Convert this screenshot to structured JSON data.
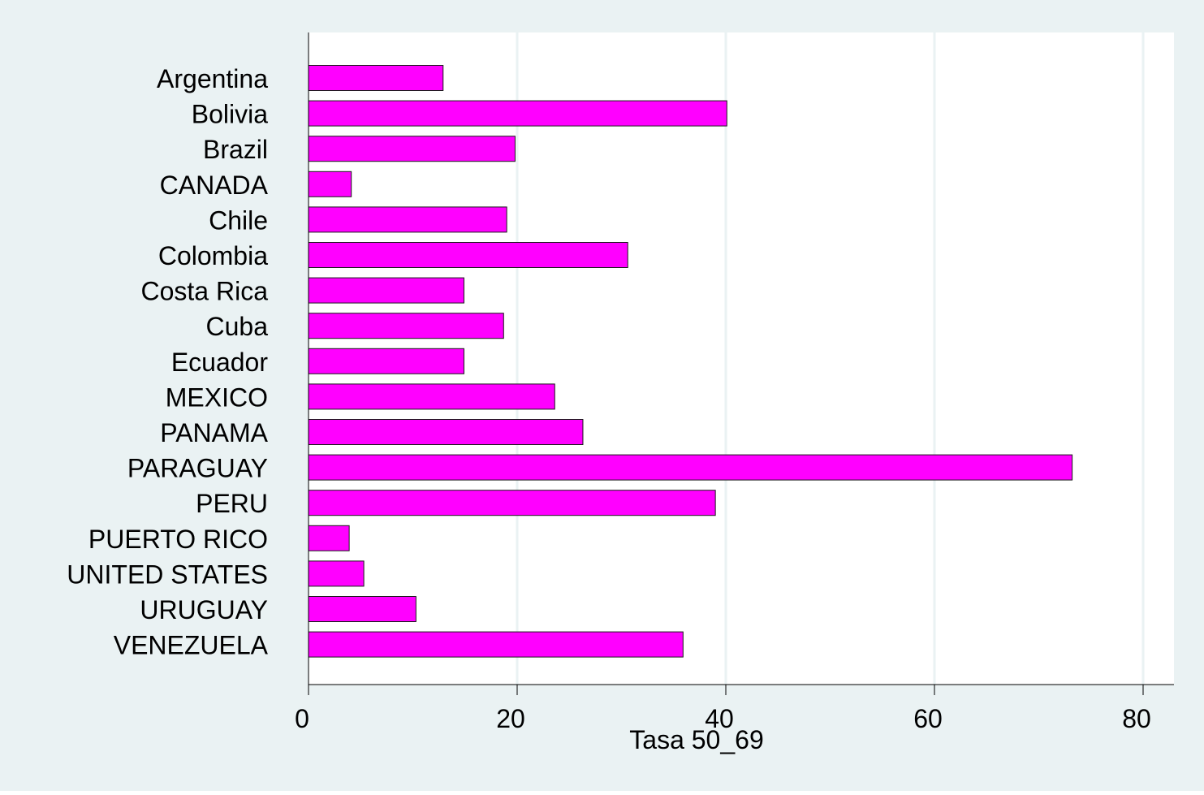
{
  "chart_data": {
    "type": "bar",
    "orientation": "horizontal",
    "categories": [
      "Argentina",
      "Bolivia",
      "Brazil",
      "CANADA",
      "Chile",
      "Colombia",
      "Costa Rica",
      "Cuba",
      "Ecuador",
      "MEXICO",
      "PANAMA",
      "PARAGUAY",
      "PERU",
      "PUERTO RICO",
      "UNITED STATES",
      "URUGUAY",
      "VENEZUELA"
    ],
    "values": [
      12.9,
      40.1,
      19.8,
      4.1,
      19.0,
      30.6,
      14.9,
      18.7,
      14.9,
      23.6,
      26.3,
      73.2,
      39.0,
      3.9,
      5.3,
      10.3,
      35.9
    ],
    "xlabel": "Tasa 50_69",
    "ylabel": "",
    "xlim": [
      0,
      80
    ],
    "xticks": [
      0,
      20,
      40,
      60,
      80
    ],
    "xtick_labels": [
      "0",
      "20",
      "40",
      "60",
      "80"
    ],
    "grid": "vertical",
    "colors": {
      "bar": "#ff00ff",
      "outer_background": "#eaf2f3",
      "plot_background": "#ffffff",
      "grid": "#eaf2f3"
    }
  }
}
